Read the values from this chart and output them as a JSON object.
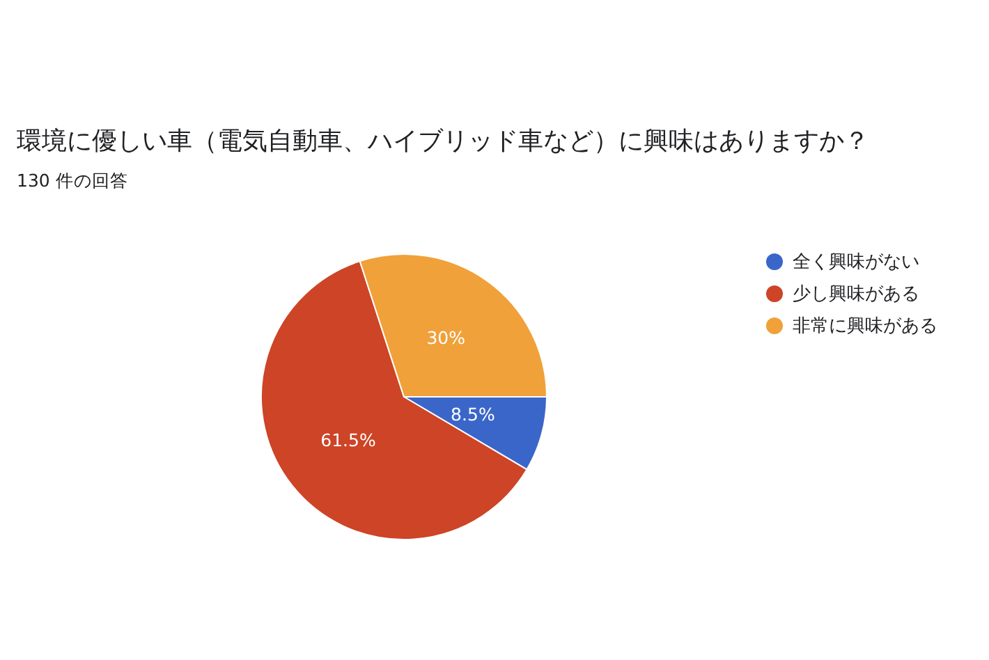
{
  "chart_data": {
    "type": "pie",
    "title": "環境に優しい車（電気自動車、ハイブリッド車など）に興味はありますか？",
    "subtitle": "130 件の回答",
    "categories": [
      "全く興味がない",
      "少し興味がある",
      "非常に興味がある"
    ],
    "values": [
      8.5,
      61.5,
      30
    ],
    "value_labels": [
      "8.5%",
      "61.5%",
      "30%"
    ],
    "colors": [
      "#3b66c9",
      "#cd4426",
      "#f0a13a"
    ],
    "legend": "right"
  }
}
